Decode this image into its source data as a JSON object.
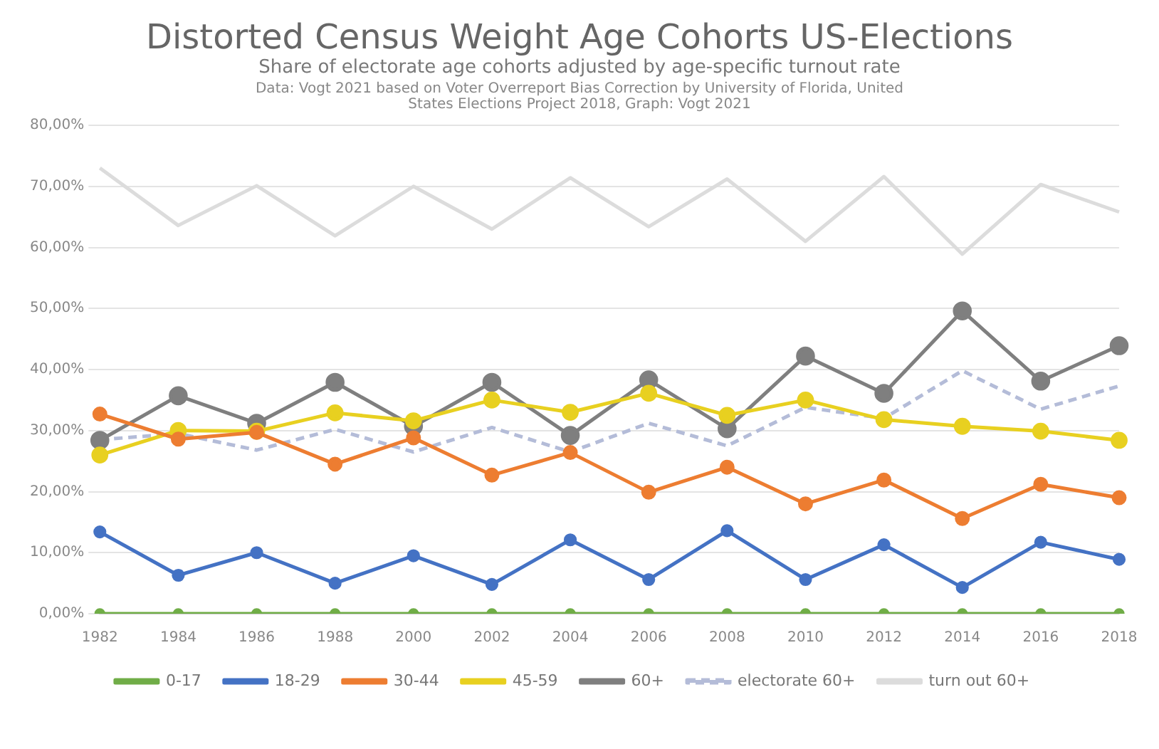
{
  "chart_data": {
    "type": "line",
    "title": "Distorted Census Weight Age Cohorts US-Elections",
    "subtitle": "Share of electorate age cohorts adjusted by age-specific turnout rate",
    "annotations": [
      "Data: Vogt 2021 based on Voter Overreport Bias Correction by University of Florida, United States Elections Project 2018, Graph: Vogt 2021"
    ],
    "categories": [
      "1982",
      "1984",
      "1986",
      "1988",
      "2000",
      "2002",
      "2004",
      "2006",
      "2008",
      "2010",
      "2012",
      "2014",
      "2016",
      "2018"
    ],
    "ylim": [
      0,
      80
    ],
    "yticks": [
      {
        "value": 0,
        "label": "0,00%"
      },
      {
        "value": 10,
        "label": "10,00%"
      },
      {
        "value": 20,
        "label": "20,00%"
      },
      {
        "value": 30,
        "label": "30,00%"
      },
      {
        "value": 40,
        "label": "40,00%"
      },
      {
        "value": 50,
        "label": "50,00%"
      },
      {
        "value": 60,
        "label": "60,00%"
      },
      {
        "value": 70,
        "label": "70,00%"
      },
      {
        "value": 80,
        "label": "80,00%"
      }
    ],
    "grid": "y",
    "legend": "bottom",
    "marker": "circle",
    "line_style": "solid",
    "series": [
      {
        "name": "0-17",
        "color": "#70ad47",
        "values": [
          0,
          0,
          0,
          0,
          0,
          0,
          0,
          0,
          0,
          0,
          0,
          0,
          0,
          0
        ]
      },
      {
        "name": "18-29",
        "color": "#4472c4",
        "values": [
          13.4,
          6.3,
          10,
          5,
          9.5,
          4.8,
          12.1,
          5.6,
          13.6,
          5.6,
          11.3,
          4.3,
          11.7,
          8.9
        ]
      },
      {
        "name": "30-44",
        "color": "#ed7d31",
        "values": [
          32.7,
          28.6,
          29.7,
          24.5,
          28.8,
          22.7,
          26.4,
          19.9,
          24,
          18,
          21.9,
          15.6,
          21.2,
          19
        ]
      },
      {
        "name": "45-59",
        "color": "#e8d020",
        "values": [
          26,
          30,
          29.9,
          32.9,
          31.6,
          35,
          33,
          36.1,
          32.5,
          35,
          31.8,
          30.7,
          29.9,
          28.4
        ]
      },
      {
        "name": "60+",
        "color": "#7f7f7f",
        "values": [
          28.4,
          35.7,
          31.2,
          37.9,
          30.7,
          37.9,
          29.2,
          38.3,
          30.3,
          42.2,
          36.1,
          49.6,
          38.1,
          43.9
        ]
      },
      {
        "name": "electorate 60+",
        "color": "#b4bcd8",
        "marker": "none",
        "line_style": "dashed",
        "values": [
          28.5,
          29.5,
          26.8,
          30.2,
          26.5,
          30.5,
          26.5,
          31.2,
          27.5,
          33.8,
          32,
          39.8,
          33.5,
          37.3
        ]
      },
      {
        "name": "turn out 60+",
        "color": "#dcdcdc",
        "marker": "none",
        "values": [
          73,
          63.6,
          70.1,
          61.9,
          70,
          63,
          71.4,
          63.4,
          71.2,
          61,
          71.6,
          58.9,
          70.3,
          65.8
        ]
      }
    ]
  }
}
